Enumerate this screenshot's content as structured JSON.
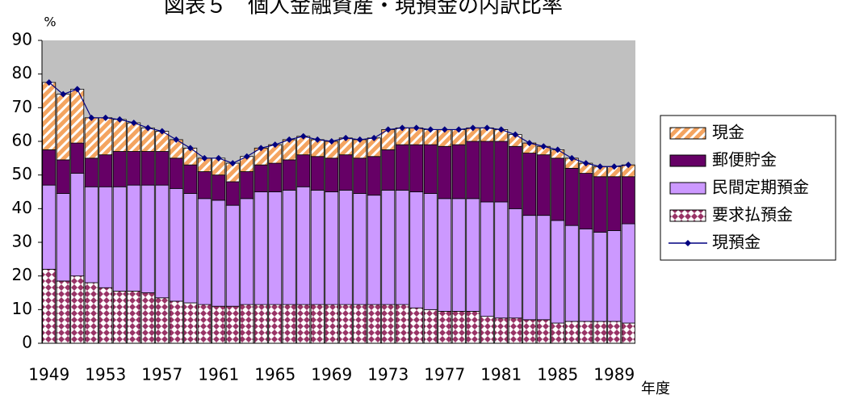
{
  "chart_data": {
    "type": "bar",
    "stacked": true,
    "title": "図表５　個人金融資産・現預金の内訳比率",
    "y_unit_label": "%",
    "x_label": "年度",
    "categories": [
      "1949",
      null,
      null,
      null,
      "1953",
      null,
      null,
      null,
      "1957",
      null,
      null,
      null,
      "1961",
      null,
      null,
      null,
      "1965",
      null,
      null,
      null,
      "1969",
      null,
      null,
      null,
      "1973",
      null,
      null,
      null,
      "1977",
      null,
      null,
      null,
      "1981",
      null,
      null,
      null,
      "1985",
      null,
      null,
      null,
      "1989",
      null
    ],
    "ylim": [
      0,
      90
    ],
    "yticks": [
      0,
      10,
      20,
      30,
      40,
      50,
      60,
      70,
      80,
      90
    ],
    "plot_background": "#c0c0c0",
    "grid": false,
    "series": [
      {
        "name": "要求払預金",
        "color": "#993366",
        "pattern": "diamonds",
        "values": [
          22,
          18.5,
          20,
          18,
          16.5,
          15.5,
          15.5,
          15,
          13.5,
          12.5,
          12,
          11.5,
          11,
          11,
          11.5,
          11.5,
          11.5,
          11.5,
          11.5,
          11.5,
          11.5,
          11.5,
          11.5,
          11.5,
          11.5,
          11.5,
          10.5,
          10,
          9.5,
          9.5,
          9.5,
          8,
          7.5,
          7.5,
          7,
          7,
          6,
          6.5,
          6.5,
          6.5,
          6.5,
          6
        ]
      },
      {
        "name": "民間定期預金",
        "color": "#cc99ff",
        "pattern": "solid",
        "values": [
          25,
          26,
          30.5,
          28.5,
          30,
          31,
          31.5,
          32,
          33.5,
          33.5,
          32.5,
          31.5,
          31.5,
          30,
          31.5,
          33.5,
          33.5,
          34,
          35,
          34,
          33.5,
          34,
          33,
          32.5,
          34,
          34,
          34.5,
          34.5,
          33.5,
          33.5,
          33.5,
          34,
          34.5,
          32.5,
          31,
          31,
          30.5,
          28.5,
          27.5,
          26.5,
          27,
          29.5
        ]
      },
      {
        "name": "郵便貯金",
        "color": "#660066",
        "pattern": "solid",
        "values": [
          10.5,
          10,
          9,
          8.5,
          9.5,
          10.5,
          10,
          10,
          10,
          9,
          8.5,
          8,
          7.5,
          7,
          8,
          8,
          8.5,
          9,
          9.5,
          10,
          10,
          10.5,
          10.5,
          11.5,
          12,
          13.5,
          14,
          14.5,
          15.5,
          16,
          17,
          18,
          18,
          18.5,
          18.5,
          18,
          18.5,
          17,
          16.5,
          16.5,
          16,
          14
        ]
      },
      {
        "name": "現金",
        "color": "#f4a460",
        "pattern": "stripes",
        "values": [
          20,
          19.5,
          16,
          12,
          11,
          9.5,
          8.5,
          7,
          6,
          5.5,
          5,
          4,
          5,
          5.5,
          4.5,
          5,
          5.5,
          6,
          5.5,
          5,
          5,
          5,
          5.5,
          5.5,
          6,
          5,
          5,
          4.5,
          5,
          4.5,
          4,
          4,
          3.5,
          3.5,
          3,
          2.5,
          2.5,
          3,
          3,
          3,
          3,
          3.5
        ]
      },
      {
        "name": "現預金",
        "color": "#000080",
        "type": "line",
        "values": [
          77.5,
          74,
          75.5,
          67,
          67,
          66.5,
          65.5,
          64,
          63,
          60.5,
          58,
          55,
          55,
          53.5,
          55.5,
          58,
          59,
          60.5,
          61.5,
          60.5,
          60,
          61,
          60.5,
          61,
          63.5,
          64,
          64,
          63.5,
          63.5,
          63.5,
          64,
          64,
          63.5,
          62,
          59.5,
          58.5,
          57.5,
          55,
          53.5,
          52.5,
          52.5,
          53
        ]
      }
    ]
  }
}
